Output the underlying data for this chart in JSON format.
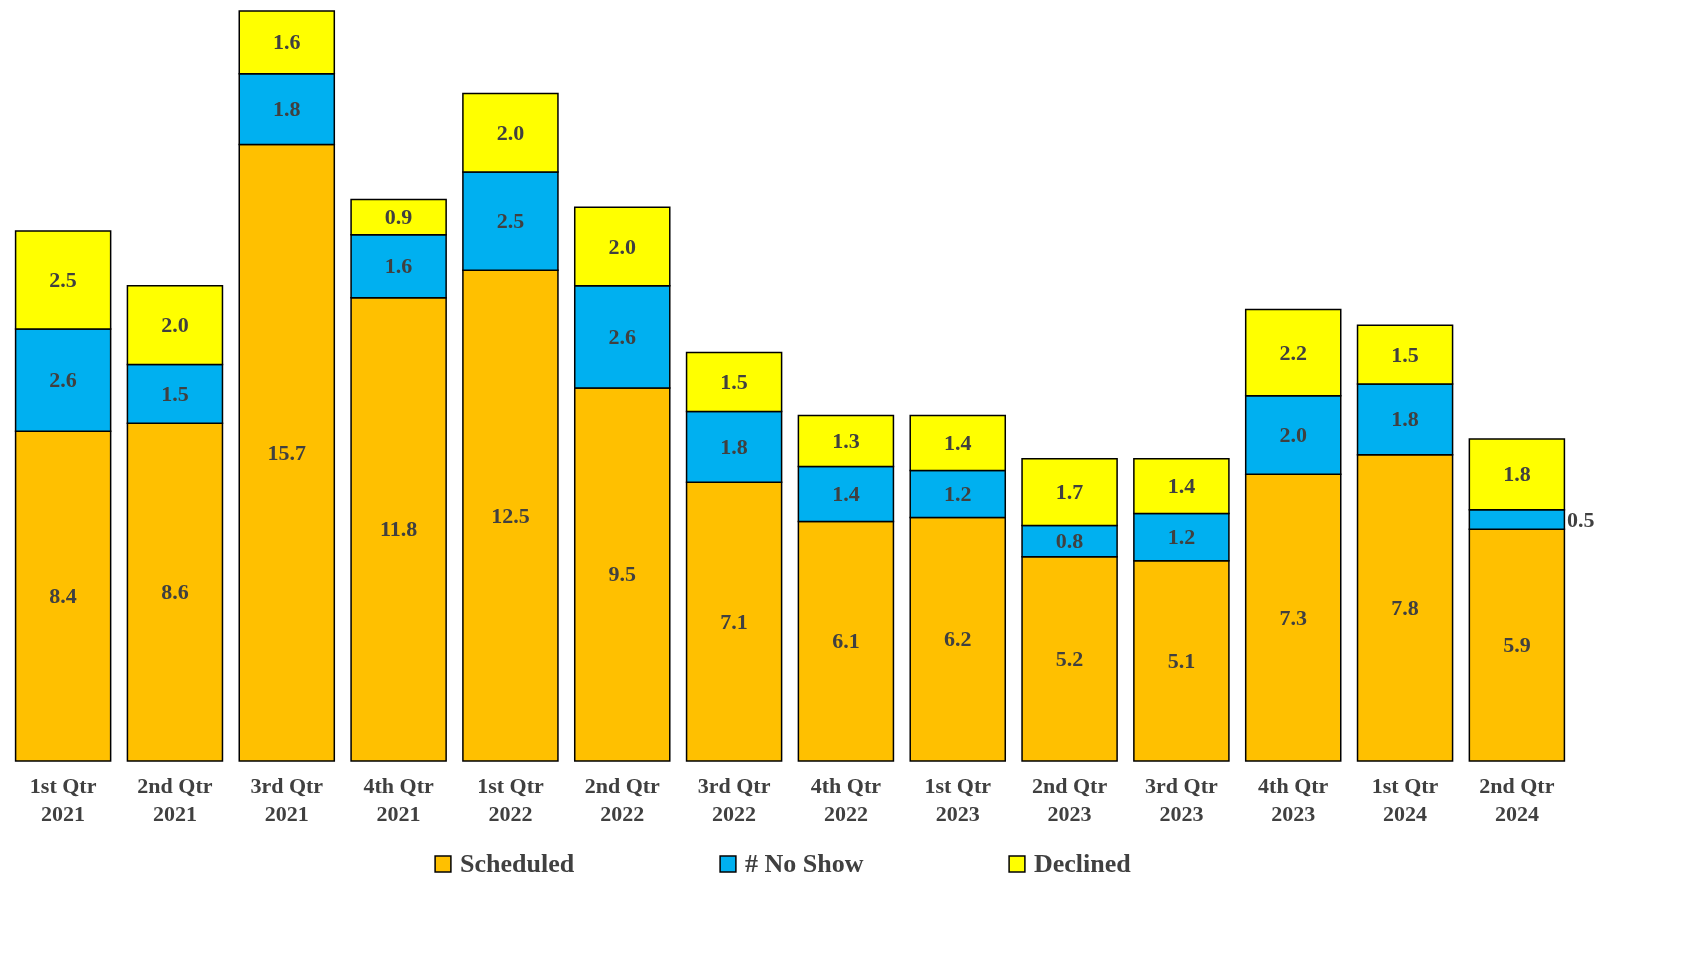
{
  "chart_data": {
    "type": "bar",
    "stacked": true,
    "legend": "bottom",
    "grid": false,
    "categories": [
      "1st Qtr 2021",
      "2nd Qtr 2021",
      "3rd Qtr 2021",
      "4th Qtr 2021",
      "1st Qtr 2022",
      "2nd Qtr 2022",
      "3rd Qtr 2022",
      "4th Qtr 2022",
      "1st Qtr 2023",
      "2nd Qtr 2023",
      "3rd Qtr 2023",
      "4th Qtr 2023",
      "1st Qtr 2024",
      "2nd Qtr 2024"
    ],
    "series": [
      {
        "name": "Scheduled",
        "color": "#ffc000",
        "values": [
          8.4,
          8.6,
          15.7,
          11.8,
          12.5,
          9.5,
          7.1,
          6.1,
          6.2,
          5.2,
          5.1,
          7.3,
          7.8,
          5.9
        ],
        "value_labels": [
          "8.4",
          "8.6",
          "15.7",
          "11.8",
          "12.5",
          "9.5",
          "7.1",
          "6.1",
          "6.2",
          "5.2",
          "5.1",
          "7.3",
          "7.8",
          "5.9"
        ]
      },
      {
        "name": "# No Show",
        "color": "#00b0f0",
        "values": [
          2.6,
          1.5,
          1.8,
          1.6,
          2.5,
          2.6,
          1.8,
          1.4,
          1.2,
          0.8,
          1.2,
          2.0,
          1.8,
          0.5
        ],
        "value_labels": [
          "2.6",
          "1.5",
          "1.8",
          "1.6",
          "2.5",
          "2.6",
          "1.8",
          "1.4",
          "1.2",
          "0.8",
          "1.2",
          "2.0",
          "1.8",
          "0.5"
        ]
      },
      {
        "name": "Declined",
        "color": "#ffff00",
        "values": [
          2.5,
          2.0,
          1.6,
          0.9,
          2.0,
          2.0,
          1.5,
          1.3,
          1.4,
          1.7,
          1.4,
          2.2,
          1.5,
          1.8
        ],
        "value_labels": [
          "2.5",
          "2.0",
          "1.6",
          "0.9",
          "2.0",
          "2.0",
          "1.5",
          "1.3",
          "1.4",
          "1.7",
          "1.4",
          "2.2",
          "1.5",
          "1.8"
        ]
      }
    ]
  }
}
